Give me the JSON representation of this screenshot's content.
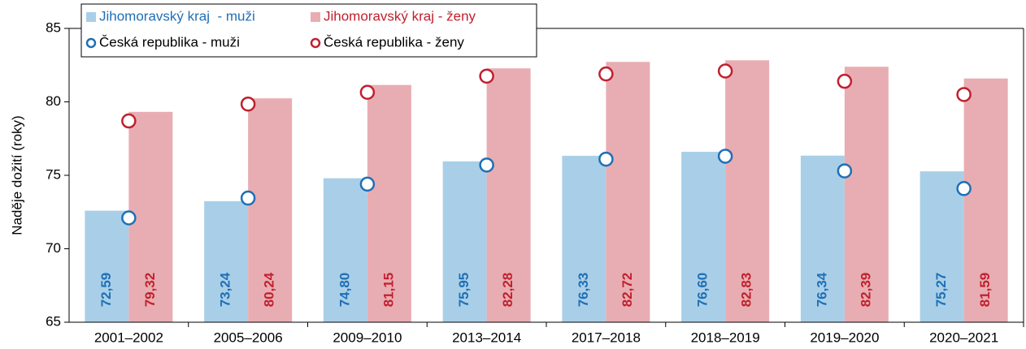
{
  "chart_data": {
    "type": "bar",
    "y_label": "Naděje dožití (roky)",
    "categories": [
      "2001–2002",
      "2005–2006",
      "2009–2010",
      "2013–2014",
      "2017–2018",
      "2018–2019",
      "2019–2020",
      "2020–2021"
    ],
    "series": [
      {
        "name": "Jihomoravský kraj  - muži",
        "type": "bar",
        "color": "#a9cfe8",
        "label_color": "#1f6fb5",
        "values": [
          72.59,
          73.24,
          74.8,
          75.95,
          76.33,
          76.6,
          76.34,
          75.27
        ],
        "value_labels": [
          "72,59",
          "73,24",
          "74,80",
          "75,95",
          "76,33",
          "76,60",
          "76,34",
          "75,27"
        ]
      },
      {
        "name": "Jihomoravský kraj - ženy",
        "type": "bar",
        "color": "#e8adb2",
        "label_color": "#c0202e",
        "values": [
          79.32,
          80.24,
          81.15,
          82.28,
          82.72,
          82.83,
          82.39,
          81.59
        ],
        "value_labels": [
          "79,32",
          "80,24",
          "81,15",
          "82,28",
          "82,72",
          "82,83",
          "82,39",
          "81,59"
        ]
      },
      {
        "name": "Česká republika - muži",
        "type": "scatter",
        "color": "#1f6fb5",
        "values": [
          72.1,
          73.45,
          74.4,
          75.7,
          76.1,
          76.3,
          75.3,
          74.1
        ]
      },
      {
        "name": "Česká republika - ženy",
        "type": "scatter",
        "color": "#c0202e",
        "values": [
          78.7,
          79.85,
          80.65,
          81.75,
          81.9,
          82.1,
          81.4,
          80.5
        ]
      }
    ],
    "ylim": [
      65,
      85
    ],
    "yticks": [
      65,
      70,
      75,
      80,
      85
    ],
    "legend": "top-left"
  }
}
